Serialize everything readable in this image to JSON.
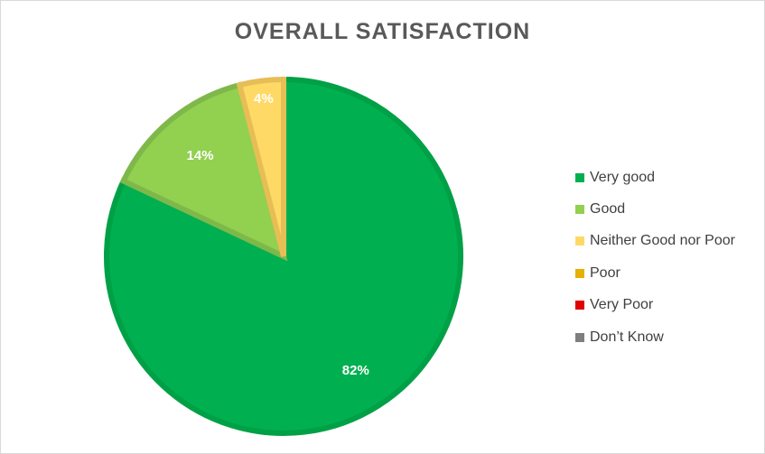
{
  "chart_data": {
    "type": "pie",
    "title": "OVERALL SATISFACTION",
    "categories": [
      "Very good",
      "Good",
      "Neither Good nor Poor",
      "Poor",
      "Very Poor",
      "Don’t Know"
    ],
    "values": [
      82,
      14,
      4,
      0,
      0,
      0
    ],
    "data_labels": [
      "82%",
      "14%",
      "4%",
      "",
      "",
      ""
    ],
    "colors": [
      "#00b050",
      "#92d050",
      "#ffd966",
      "#e6b000",
      "#e00000",
      "#7f7f7f"
    ],
    "border_colors": [
      "#00a046",
      "#7fb84a",
      "#e6be55",
      "#c89a00",
      "#b00000",
      "#666666"
    ],
    "legend_position": "right"
  }
}
